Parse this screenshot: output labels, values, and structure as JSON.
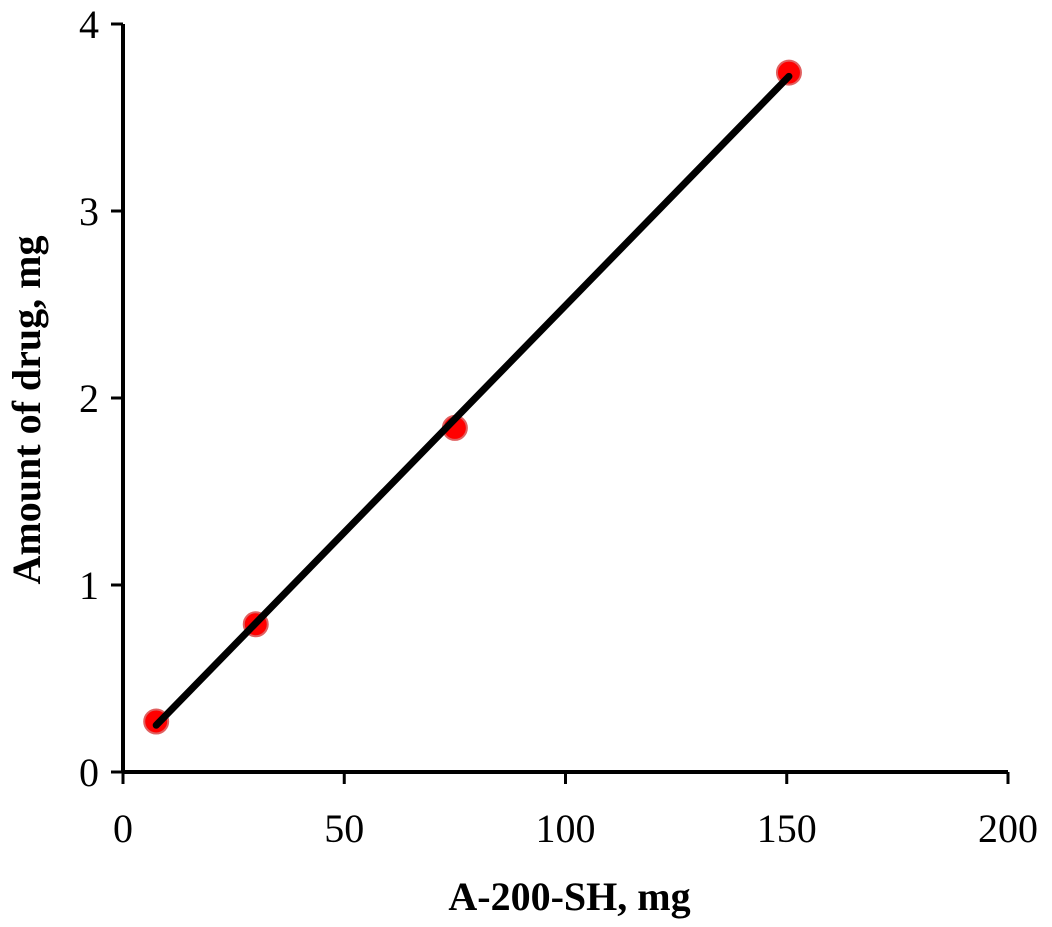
{
  "chart_data": {
    "type": "scatter",
    "title": "",
    "xlabel": "A-200-SH, mg",
    "ylabel": "Amount of drug, mg",
    "xlim": [
      0,
      200
    ],
    "ylim": [
      0,
      4
    ],
    "x_ticks": [
      0,
      50,
      100,
      150,
      200
    ],
    "y_ticks": [
      0,
      1,
      2,
      3,
      4
    ],
    "x_tick_labels": [
      "0",
      "50",
      "100",
      "150",
      "200"
    ],
    "y_tick_labels": [
      "0",
      "1",
      "2",
      "3",
      "4"
    ],
    "grid": false,
    "legend": "none",
    "series": [
      {
        "marker": "circle",
        "color": "#ff0000",
        "points": [
          {
            "x": 7.5,
            "y": 0.27
          },
          {
            "x": 30,
            "y": 0.79
          },
          {
            "x": 75,
            "y": 1.84
          },
          {
            "x": 150.5,
            "y": 3.74
          }
        ]
      }
    ],
    "trendline": {
      "type": "linear",
      "color": "#000000",
      "from": {
        "x": 7.5,
        "y": 0.25
      },
      "to": {
        "x": 150.5,
        "y": 3.72
      }
    }
  }
}
